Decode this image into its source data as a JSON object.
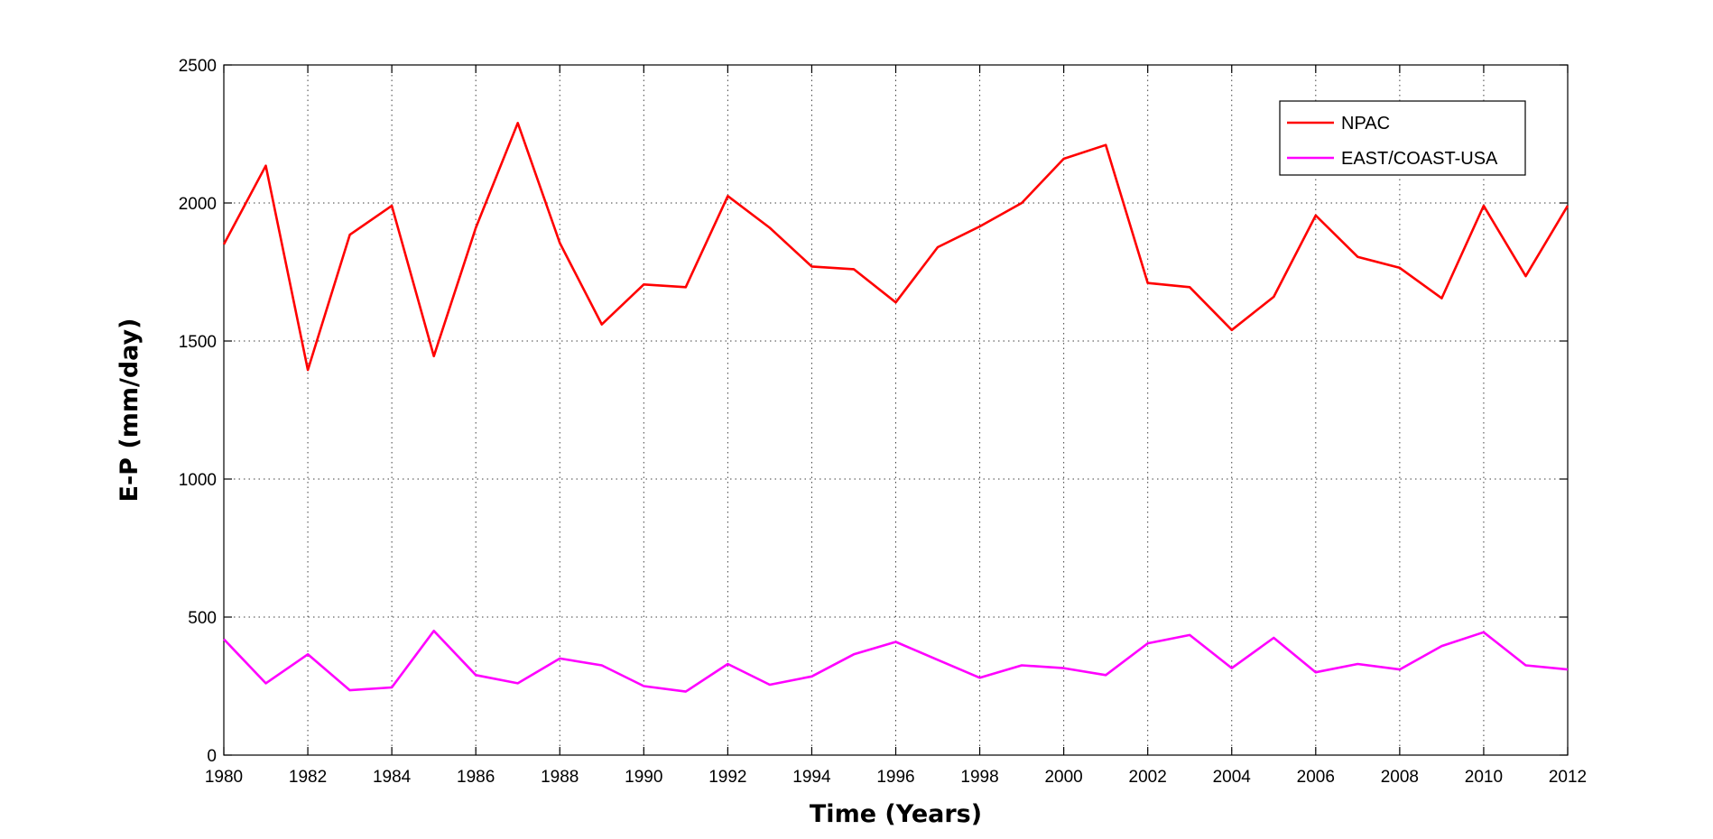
{
  "chart_data": {
    "type": "line",
    "title": "",
    "xlabel": "Time (Years)",
    "ylabel": "E-P (mm/day)",
    "xlim": [
      1980,
      2012
    ],
    "ylim": [
      0,
      2500
    ],
    "xticks": [
      1980,
      1982,
      1984,
      1986,
      1988,
      1990,
      1992,
      1994,
      1996,
      1998,
      2000,
      2002,
      2004,
      2006,
      2008,
      2010,
      2012
    ],
    "yticks": [
      0,
      500,
      1000,
      1500,
      2000,
      2500
    ],
    "grid": true,
    "legend_position": "top-right",
    "x": [
      1980,
      1981,
      1982,
      1983,
      1984,
      1985,
      1986,
      1987,
      1988,
      1989,
      1990,
      1991,
      1992,
      1993,
      1994,
      1995,
      1996,
      1997,
      1998,
      1999,
      2000,
      2001,
      2002,
      2003,
      2004,
      2005,
      2006,
      2007,
      2008,
      2009,
      2010,
      2011,
      2012
    ],
    "series": [
      {
        "name": "NPAC",
        "color": "#ff0000",
        "values": [
          1850,
          2135,
          1395,
          1885,
          1990,
          1445,
          1910,
          2290,
          1855,
          1560,
          1705,
          1695,
          2025,
          1910,
          1770,
          1760,
          1640,
          1840,
          1915,
          2000,
          2160,
          2210,
          1710,
          1695,
          1540,
          1660,
          1955,
          1805,
          1765,
          1655,
          1990,
          1735,
          1990
        ]
      },
      {
        "name": "EAST/COAST-USA",
        "color": "#ff00ff",
        "values": [
          420,
          260,
          365,
          235,
          245,
          450,
          290,
          260,
          350,
          325,
          250,
          230,
          330,
          255,
          285,
          365,
          410,
          345,
          280,
          325,
          315,
          290,
          405,
          435,
          315,
          425,
          300,
          330,
          310,
          395,
          445,
          325,
          310
        ]
      }
    ]
  }
}
